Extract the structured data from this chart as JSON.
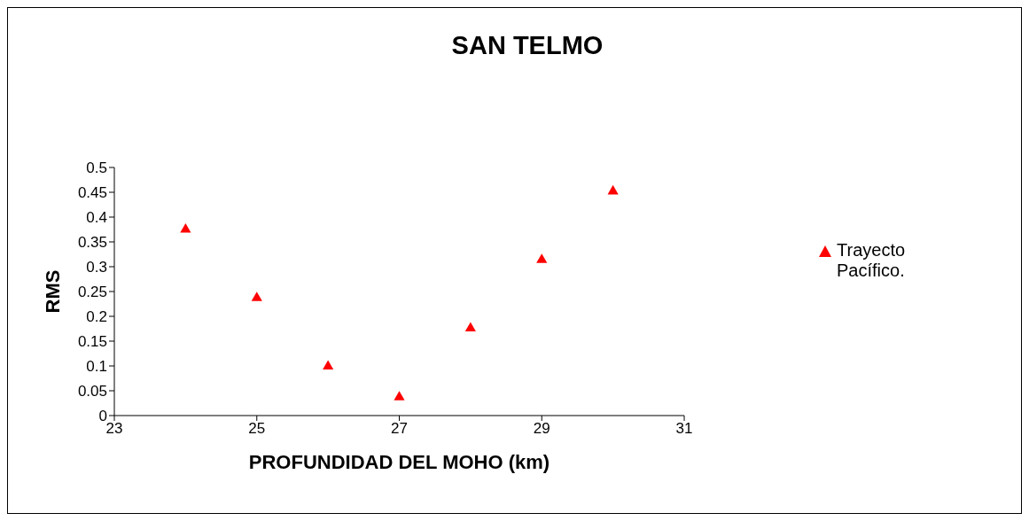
{
  "chart_data": {
    "type": "scatter",
    "title": "SAN TELMO",
    "xlabel": "PROFUNDIDAD DEL MOHO (km)",
    "ylabel": "RMS",
    "x": [
      24,
      25,
      26,
      27,
      28,
      29,
      30
    ],
    "series": [
      {
        "name": "Trayecto Pacífico.",
        "color": "#ff0000",
        "values": [
          0.375,
          0.237,
          0.099,
          0.037,
          0.176,
          0.314,
          0.452
        ]
      }
    ],
    "xlim": [
      23,
      31
    ],
    "xticks": [
      23,
      25,
      27,
      29,
      31
    ],
    "ylim": [
      0,
      0.5
    ],
    "yticks": [
      0,
      0.05,
      0.1,
      0.15,
      0.2,
      0.25,
      0.3,
      0.35,
      0.4,
      0.45,
      0.5
    ],
    "grid": false,
    "legend": "right",
    "marker": "triangle"
  }
}
